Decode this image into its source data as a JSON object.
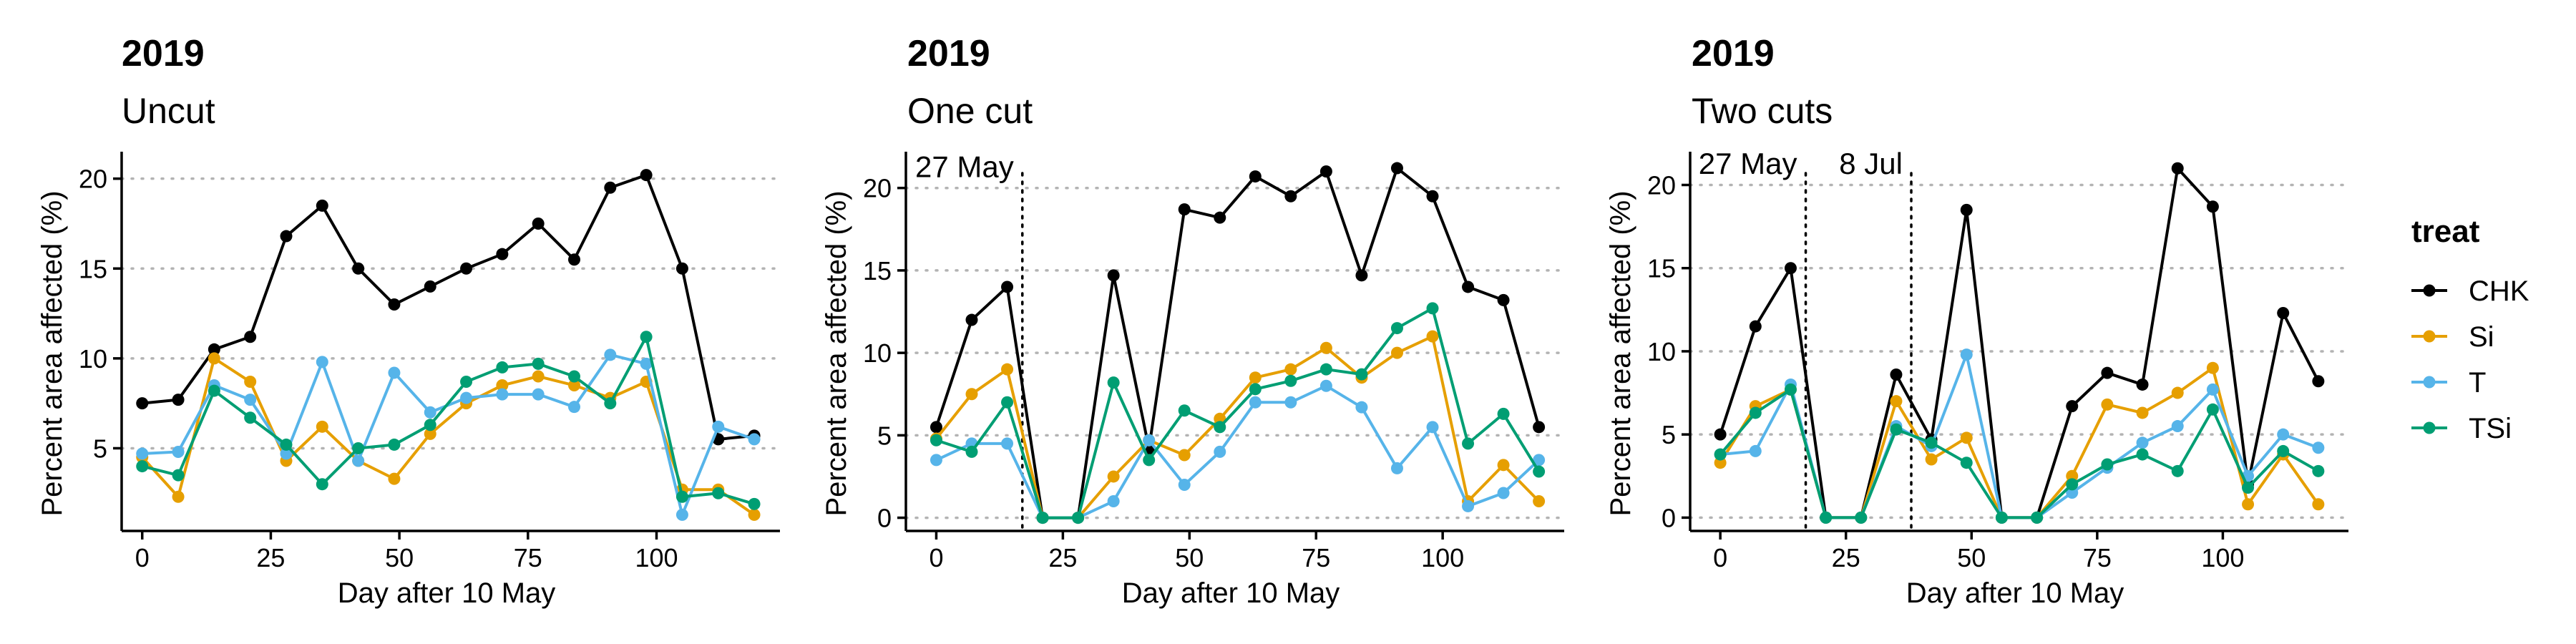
{
  "colors": {
    "CHK": "#000000",
    "Si": "#E69F00",
    "T": "#56B4E9",
    "TSi": "#009E73"
  },
  "legend": {
    "title": "treat",
    "items": [
      {
        "key": "CHK",
        "label": "CHK"
      },
      {
        "key": "Si",
        "label": "Si"
      },
      {
        "key": "T",
        "label": "T"
      },
      {
        "key": "TSi",
        "label": "TSi"
      }
    ]
  },
  "chart_data": [
    {
      "type": "line",
      "title": "2019",
      "subtitle": "Uncut",
      "xlabel": "Day after 10 May",
      "ylabel": "Percent area affected (%)",
      "xlim": [
        -4,
        124
      ],
      "ylim": [
        0.4,
        21.5
      ],
      "xticks": [
        0,
        25,
        50,
        75,
        100
      ],
      "yticks": [
        5,
        10,
        15,
        20
      ],
      "grid": "horizontal dotted",
      "x": [
        0,
        7,
        14,
        21,
        28,
        35,
        42,
        49,
        56,
        63,
        70,
        77,
        84,
        91,
        98,
        105,
        112,
        119
      ],
      "series": [
        {
          "name": "CHK",
          "values": [
            7.5,
            7.7,
            10.5,
            11.2,
            16.8,
            18.5,
            15.0,
            13.0,
            14.0,
            15.0,
            15.8,
            17.5,
            15.5,
            19.5,
            20.2,
            15.0,
            5.5,
            5.7
          ]
        },
        {
          "name": "Si",
          "values": [
            4.5,
            2.3,
            10.0,
            8.7,
            4.3,
            6.2,
            4.3,
            3.3,
            5.8,
            7.5,
            8.5,
            9.0,
            8.5,
            7.8,
            8.7,
            2.7,
            2.7,
            1.3
          ]
        },
        {
          "name": "T",
          "values": [
            4.7,
            4.8,
            8.5,
            7.7,
            4.7,
            9.8,
            4.3,
            9.2,
            7.0,
            7.8,
            8.0,
            8.0,
            7.3,
            10.2,
            9.7,
            1.3,
            6.2,
            5.5
          ]
        },
        {
          "name": "TSi",
          "values": [
            4.0,
            3.5,
            8.2,
            6.7,
            5.2,
            3.0,
            5.0,
            5.2,
            6.3,
            8.7,
            9.5,
            9.7,
            9.0,
            7.5,
            11.2,
            2.3,
            2.5,
            1.9
          ]
        }
      ]
    },
    {
      "type": "line",
      "title": "2019",
      "subtitle": "One cut",
      "xlabel": "Day after 10 May",
      "ylabel": "Percent area affected (%)",
      "xlim": [
        -6,
        124
      ],
      "ylim": [
        -0.8,
        22.2
      ],
      "xticks": [
        0,
        25,
        50,
        75,
        100
      ],
      "yticks": [
        0,
        5,
        10,
        15,
        20
      ],
      "grid": "horizontal dotted",
      "cut_lines": [
        {
          "x": 17,
          "label": "27 May"
        }
      ],
      "x": [
        0,
        7,
        14,
        21,
        28,
        35,
        42,
        49,
        56,
        63,
        70,
        77,
        84,
        91,
        98,
        105,
        112,
        119
      ],
      "series": [
        {
          "name": "CHK",
          "values": [
            5.5,
            12.0,
            14.0,
            0,
            0,
            14.7,
            4.2,
            18.7,
            18.2,
            20.7,
            19.5,
            21.0,
            14.7,
            21.2,
            19.5,
            14.0,
            13.2,
            5.5
          ]
        },
        {
          "name": "Si",
          "values": [
            4.8,
            7.5,
            9.0,
            0,
            0,
            2.5,
            4.7,
            3.8,
            6.0,
            8.5,
            9.0,
            10.3,
            8.5,
            10.0,
            11.0,
            1.0,
            3.2,
            1.0
          ]
        },
        {
          "name": "T",
          "values": [
            3.5,
            4.5,
            4.5,
            0,
            0,
            1.0,
            4.7,
            2.0,
            4.0,
            7.0,
            7.0,
            8.0,
            6.7,
            3.0,
            5.5,
            0.7,
            1.5,
            3.5
          ]
        },
        {
          "name": "TSi",
          "values": [
            4.7,
            4.0,
            7.0,
            0,
            0,
            8.2,
            3.5,
            6.5,
            5.5,
            7.8,
            8.3,
            9.0,
            8.7,
            11.5,
            12.7,
            4.5,
            6.3,
            2.8
          ]
        }
      ]
    },
    {
      "type": "line",
      "title": "2019",
      "subtitle": "Two cuts",
      "xlabel": "Day after 10 May",
      "ylabel": "Percent area affected (%)",
      "xlim": [
        -6,
        125
      ],
      "ylim": [
        -0.8,
        22.0
      ],
      "xticks": [
        0,
        25,
        50,
        75,
        100
      ],
      "yticks": [
        0,
        5,
        10,
        15,
        20
      ],
      "grid": "horizontal dotted",
      "cut_lines": [
        {
          "x": 17,
          "label": "27 May"
        },
        {
          "x": 38,
          "label": "8 Jul"
        }
      ],
      "x": [
        0,
        7,
        14,
        21,
        28,
        35,
        42,
        49,
        56,
        63,
        70,
        77,
        84,
        91,
        98,
        105,
        112,
        119
      ],
      "series": [
        {
          "name": "CHK",
          "values": [
            5.0,
            11.5,
            15.0,
            0,
            0,
            8.6,
            4.7,
            18.5,
            0,
            0,
            6.7,
            8.7,
            8.0,
            21.0,
            18.7,
            2.0,
            12.3,
            8.2
          ]
        },
        {
          "name": "Si",
          "values": [
            3.3,
            6.7,
            7.7,
            0,
            0,
            7.0,
            3.5,
            4.8,
            0,
            0,
            2.5,
            6.8,
            6.3,
            7.5,
            9.0,
            0.8,
            3.8,
            0.8
          ]
        },
        {
          "name": "T",
          "values": [
            3.8,
            4.0,
            8.0,
            0,
            0,
            5.5,
            4.3,
            9.8,
            0,
            0,
            1.5,
            3.0,
            4.5,
            5.5,
            7.7,
            2.5,
            5.0,
            4.2
          ]
        },
        {
          "name": "TSi",
          "values": [
            3.8,
            6.3,
            7.7,
            0,
            0,
            5.3,
            4.5,
            3.3,
            0,
            0,
            2.0,
            3.2,
            3.8,
            2.8,
            6.5,
            1.8,
            4.0,
            2.8
          ]
        }
      ]
    }
  ]
}
